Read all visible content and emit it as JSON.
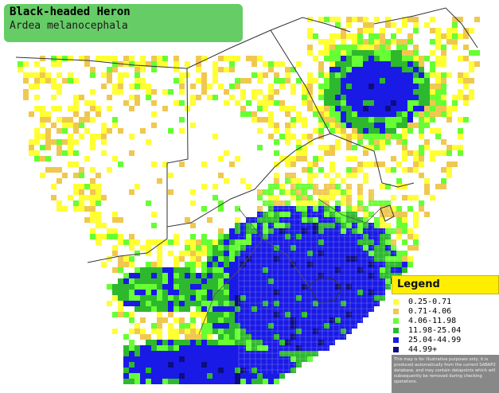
{
  "title": {
    "common_name": "Black-headed Heron",
    "scientific_name": "Ardea melanocephala"
  },
  "legend": {
    "heading": "Legend",
    "items": [
      {
        "label": "0.25-0.71",
        "color": "#ffff33"
      },
      {
        "label": "0.71-4.06",
        "color": "#f0c850"
      },
      {
        "label": "4.06-11.98",
        "color": "#66ff33"
      },
      {
        "label": "11.98-25.04",
        "color": "#2eb82e"
      },
      {
        "label": "25.04-44.99",
        "color": "#1a1ae6"
      },
      {
        "label": "44.99+",
        "color": "#0d0d80"
      }
    ],
    "note": "This map is for illustrative purposes only; it is produced automatically from the current SABAP2 database, and may contain datapoints which will subsequently be removed during checking operations."
  },
  "colors": {
    "background": "#ffffff",
    "title_box": "#66cc66",
    "legend_header": "#ffee00",
    "note_box": "#888888",
    "borders": "#333333"
  }
}
